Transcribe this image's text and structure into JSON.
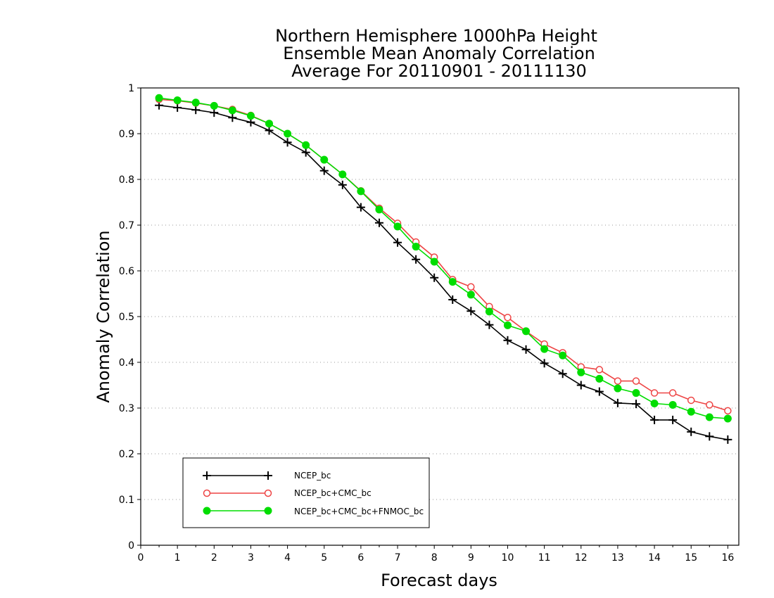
{
  "chart_data": {
    "type": "line",
    "title_lines": [
      "Northern Hemisphere 1000hPa Height",
      "Ensemble Mean Anomaly Correlation",
      "Average For 20110901 - 20111130"
    ],
    "xlabel": "Forecast days",
    "ylabel": "Anomaly Correlation",
    "xlim": [
      0,
      16.3
    ],
    "ylim": [
      0,
      1
    ],
    "xticks": [
      "0",
      "1",
      "2",
      "3",
      "4",
      "5",
      "6",
      "7",
      "8",
      "9",
      "10",
      "11",
      "12",
      "13",
      "14",
      "15",
      "16"
    ],
    "yticks": [
      "0",
      "0.1",
      "0.2",
      "0.3",
      "0.4",
      "0.5",
      "0.6",
      "0.7",
      "0.8",
      "0.9",
      "1"
    ],
    "grid": "horizontal dotted",
    "legend_position": "bottom-left",
    "x": [
      0.5,
      1,
      1.5,
      2,
      2.5,
      3,
      3.5,
      4,
      4.5,
      5,
      5.5,
      6,
      6.5,
      7,
      7.5,
      8,
      8.5,
      9,
      9.5,
      10,
      10.5,
      11,
      11.5,
      12,
      12.5,
      13,
      13.5,
      14,
      14.5,
      15,
      15.5,
      16
    ],
    "series": [
      {
        "name": "NCEP_bc",
        "color": "#000000",
        "marker": "plus",
        "values": [
          0.962,
          0.957,
          0.952,
          0.946,
          0.935,
          0.925,
          0.907,
          0.881,
          0.859,
          0.819,
          0.788,
          0.739,
          0.705,
          0.662,
          0.625,
          0.585,
          0.537,
          0.512,
          0.482,
          0.448,
          0.428,
          0.398,
          0.375,
          0.35,
          0.336,
          0.311,
          0.309,
          0.274,
          0.274,
          0.248,
          0.238,
          0.231
        ]
      },
      {
        "name": "NCEP_bc+CMC_bc",
        "color": "#ee4444",
        "marker": "open-circle",
        "values": [
          0.975,
          0.972,
          0.967,
          0.961,
          0.953,
          0.94,
          0.922,
          0.9,
          0.875,
          0.843,
          0.811,
          0.775,
          0.737,
          0.704,
          0.663,
          0.63,
          0.581,
          0.565,
          0.522,
          0.498,
          0.468,
          0.44,
          0.421,
          0.39,
          0.384,
          0.359,
          0.359,
          0.333,
          0.333,
          0.317,
          0.307,
          0.294
        ]
      },
      {
        "name": "NCEP_bc+CMC_bc+FNMOC_bc",
        "color": "#00dd00",
        "marker": "filled-circle",
        "values": [
          0.978,
          0.973,
          0.968,
          0.961,
          0.951,
          0.939,
          0.922,
          0.9,
          0.875,
          0.843,
          0.811,
          0.774,
          0.734,
          0.697,
          0.653,
          0.62,
          0.576,
          0.548,
          0.511,
          0.481,
          0.468,
          0.429,
          0.415,
          0.378,
          0.364,
          0.343,
          0.333,
          0.31,
          0.307,
          0.292,
          0.28,
          0.277
        ]
      }
    ]
  }
}
